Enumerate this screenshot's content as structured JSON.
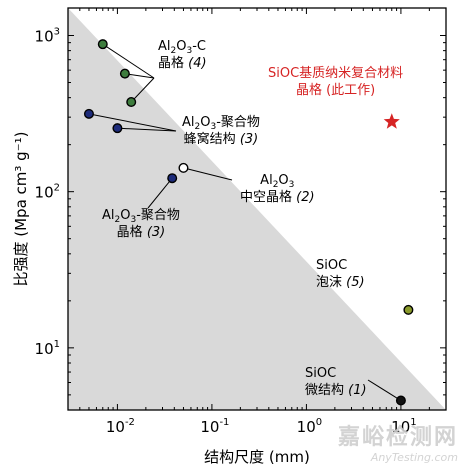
{
  "chart_data": {
    "type": "scatter",
    "xlabel": "结构尺度 (mm)",
    "ylabel": "比强度 (Mpa cm³ g⁻¹)",
    "xscale": "log",
    "yscale": "log",
    "xlim": [
      0.003,
      30
    ],
    "ylim": [
      4,
      1500
    ],
    "x_ticks": [
      {
        "value": 0.01,
        "base": "10",
        "exp": "-2"
      },
      {
        "value": 0.1,
        "base": "10",
        "exp": "-1"
      },
      {
        "value": 1,
        "base": "10",
        "exp": "0"
      },
      {
        "value": 10,
        "base": "10",
        "exp": "1"
      }
    ],
    "y_ticks": [
      {
        "value": 10,
        "base": "10",
        "exp": "1"
      },
      {
        "value": 100,
        "base": "10",
        "exp": "2"
      },
      {
        "value": 1000,
        "base": "10",
        "exp": "3"
      }
    ],
    "grid": false,
    "shaded_region": {
      "description": "gray triangular area below diagonal",
      "from": [
        0.003,
        1500
      ],
      "to": [
        30,
        4
      ]
    },
    "series": [
      {
        "name": "Al2O3-C 晶格 (4)",
        "color": "#3e7d3e",
        "points": [
          [
            0.007,
            880
          ],
          [
            0.012,
            570
          ],
          [
            0.014,
            375
          ]
        ]
      },
      {
        "name": "Al2O3-聚合物 蜂窝结构 (3)",
        "color": "#1d2b7a",
        "points": [
          [
            0.005,
            315
          ],
          [
            0.01,
            255
          ]
        ]
      },
      {
        "name": "Al2O3-聚合物 晶格 (3)",
        "color": "#1d2b7a",
        "points": [
          [
            0.038,
            122
          ]
        ]
      },
      {
        "name": "Al2O3 中空晶格 (2)",
        "color": "#ffffff",
        "points": [
          [
            0.05,
            142
          ]
        ]
      },
      {
        "name": "SiOC 泡沫 (5)",
        "color": "#8a9a2a",
        "points": [
          [
            12,
            17.5
          ]
        ]
      },
      {
        "name": "SiOC 微结构 (1)",
        "color": "#111111",
        "points": [
          [
            10,
            4.6
          ]
        ]
      },
      {
        "name": "SiOC基质纳米复合材料 晶格 (此工作)",
        "color": "#d62424",
        "marker": "star",
        "points": [
          [
            8,
            280
          ]
        ]
      }
    ]
  },
  "annotations": {
    "al2o3c": {
      "formula": "Al2O3-C",
      "label": "晶格",
      "ref": "(4)"
    },
    "honeycomb": {
      "formula": "Al2O3-聚合物",
      "label": "蜂窝结构",
      "ref": "(3)"
    },
    "hollow": {
      "formula": "Al2O3",
      "label": "中空晶格",
      "ref": "(2)"
    },
    "polylattice": {
      "formula": "Al2O3-聚合物",
      "label": "晶格",
      "ref": "(3)"
    },
    "foam": {
      "formula": "SiOC",
      "label": "泡沫",
      "ref": "(5)"
    },
    "micro": {
      "formula": "SiOC",
      "label": "微结构",
      "ref": "(1)"
    },
    "thiswork": {
      "line1": "SiOC基质纳米复合材料",
      "line2": "晶格 (此工作)"
    }
  },
  "watermark": {
    "line1": "嘉峪检测网",
    "line2": "AnyTesting.com"
  }
}
